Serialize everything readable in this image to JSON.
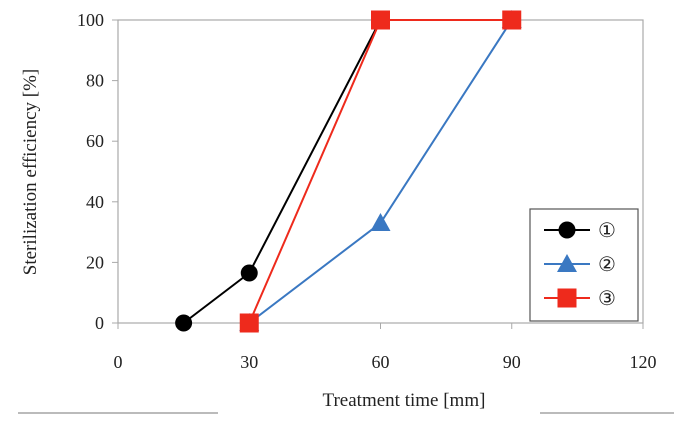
{
  "chart_data": {
    "type": "line",
    "xlabel": "Treatment time [mm]",
    "ylabel": "Sterilization efficiency [%]",
    "xlim": [
      0,
      120
    ],
    "ylim": [
      0,
      100
    ],
    "xticks": [
      0,
      30,
      60,
      90,
      120
    ],
    "yticks": [
      0,
      20,
      40,
      60,
      80,
      100
    ],
    "grid": false,
    "legend_position": "bottom-right",
    "series": [
      {
        "name": "①",
        "color": "#000000",
        "marker": "circle",
        "points": [
          [
            15,
            0
          ],
          [
            30,
            16.5
          ],
          [
            60,
            100
          ]
        ]
      },
      {
        "name": "②",
        "color": "#3a78c2",
        "marker": "triangle",
        "points": [
          [
            30,
            0
          ],
          [
            60,
            33
          ],
          [
            90,
            100
          ]
        ]
      },
      {
        "name": "③",
        "color": "#ee2a1c",
        "marker": "square",
        "points": [
          [
            30,
            0
          ],
          [
            60,
            100
          ],
          [
            90,
            100
          ]
        ]
      }
    ]
  }
}
